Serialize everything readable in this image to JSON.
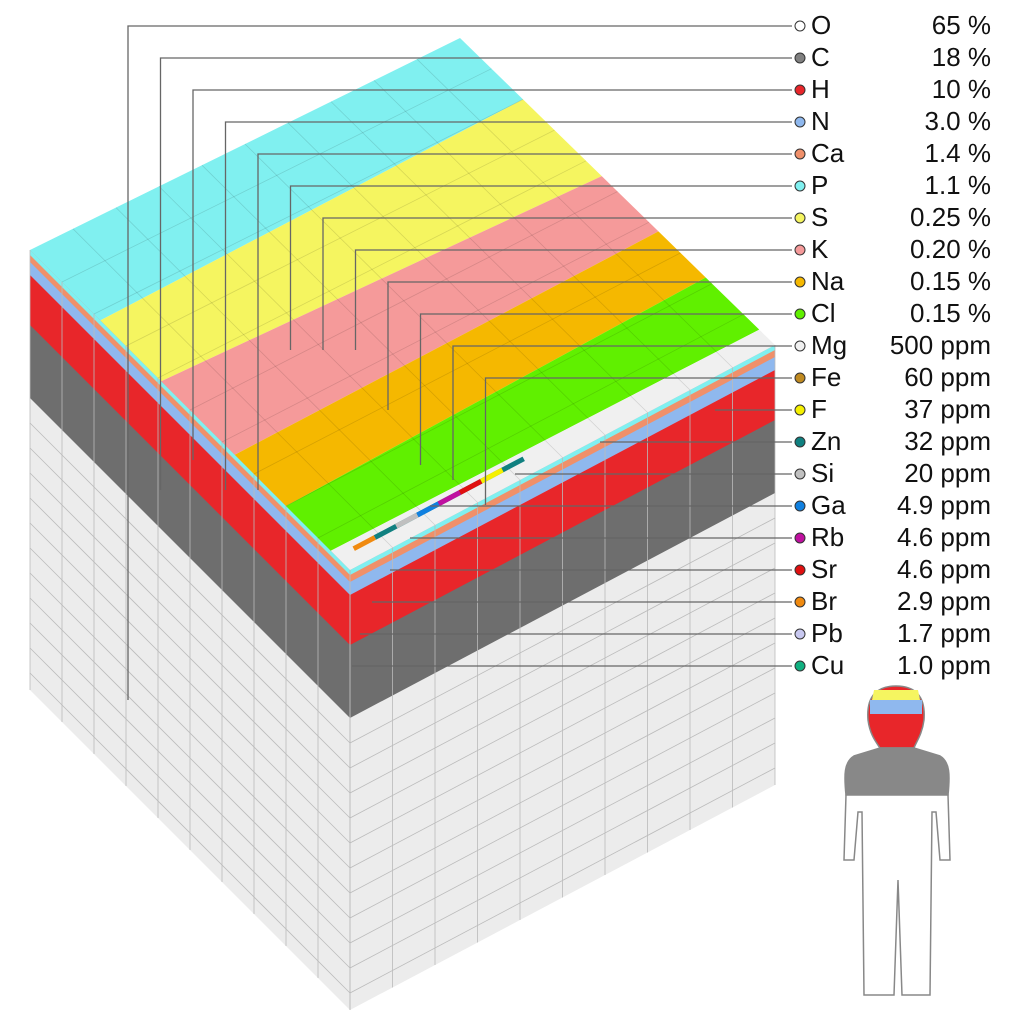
{
  "elements": [
    {
      "symbol": "O",
      "amount": "65 %",
      "color": "#ffffff"
    },
    {
      "symbol": "C",
      "amount": "18 %",
      "color": "#808080"
    },
    {
      "symbol": "H",
      "amount": "10 %",
      "color": "#e8262a"
    },
    {
      "symbol": "N",
      "amount": "3.0 %",
      "color": "#8fb8ee"
    },
    {
      "symbol": "Ca",
      "amount": "1.4 %",
      "color": "#f0906a"
    },
    {
      "symbol": "P",
      "amount": "1.1 %",
      "color": "#80f0f0"
    },
    {
      "symbol": "S",
      "amount": "0.25 %",
      "color": "#f5f560"
    },
    {
      "symbol": "K",
      "amount": "0.20 %",
      "color": "#f59a9a"
    },
    {
      "symbol": "Na",
      "amount": "0.15 %",
      "color": "#f5b800"
    },
    {
      "symbol": "Cl",
      "amount": "0.15 %",
      "color": "#60f000"
    },
    {
      "symbol": "Mg",
      "amount": "500 ppm",
      "color": "#f0f0f0"
    },
    {
      "symbol": "Fe",
      "amount": "60 ppm",
      "color": "#c08a20"
    },
    {
      "symbol": "F",
      "amount": "37 ppm",
      "color": "#f5f000"
    },
    {
      "symbol": "Zn",
      "amount": "32 ppm",
      "color": "#108080"
    },
    {
      "symbol": "Si",
      "amount": "20 ppm",
      "color": "#c0c0c0"
    },
    {
      "symbol": "Ga",
      "amount": "4.9 ppm",
      "color": "#1080e0"
    },
    {
      "symbol": "Rb",
      "amount": "4.6 ppm",
      "color": "#c010a0"
    },
    {
      "symbol": "Sr",
      "amount": "4.6 ppm",
      "color": "#e01010"
    },
    {
      "symbol": "Br",
      "amount": "2.9 ppm",
      "color": "#f08a10"
    },
    {
      "symbol": "Pb",
      "amount": "1.7 ppm",
      "color": "#c8c8f0"
    },
    {
      "symbol": "Cu",
      "amount": "1.0 ppm",
      "color": "#10b080"
    }
  ]
}
